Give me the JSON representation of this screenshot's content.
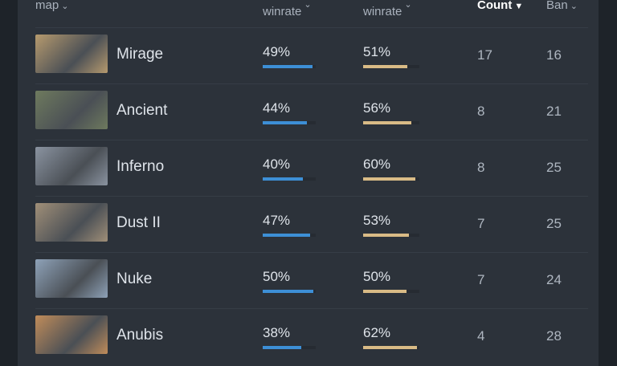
{
  "headers": {
    "map": "map",
    "ct": "winrate",
    "t": "winrate",
    "count": "Count",
    "ban": "Ban"
  },
  "colors": {
    "ct": "#3d8fd6",
    "t": "#d9bb86"
  },
  "rows": [
    {
      "name": "Mirage",
      "ct": "49%",
      "t": "51%",
      "ct_value": 49,
      "t_value": 51,
      "count": "17",
      "ban": "16",
      "thumb": "#b69a6e"
    },
    {
      "name": "Ancient",
      "ct": "44%",
      "t": "56%",
      "ct_value": 44,
      "t_value": 56,
      "count": "8",
      "ban": "21",
      "thumb": "#6e7a5e"
    },
    {
      "name": "Inferno",
      "ct": "40%",
      "t": "60%",
      "ct_value": 40,
      "t_value": 60,
      "count": "8",
      "ban": "25",
      "thumb": "#8a93a0"
    },
    {
      "name": "Dust II",
      "ct": "47%",
      "t": "53%",
      "ct_value": 47,
      "t_value": 53,
      "count": "7",
      "ban": "25",
      "thumb": "#a08f78"
    },
    {
      "name": "Nuke",
      "ct": "50%",
      "t": "50%",
      "ct_value": 50,
      "t_value": 50,
      "count": "7",
      "ban": "24",
      "thumb": "#8ea2b8"
    },
    {
      "name": "Anubis",
      "ct": "38%",
      "t": "62%",
      "ct_value": 38,
      "t_value": 62,
      "count": "4",
      "ban": "28",
      "thumb": "#c08c5a"
    }
  ]
}
